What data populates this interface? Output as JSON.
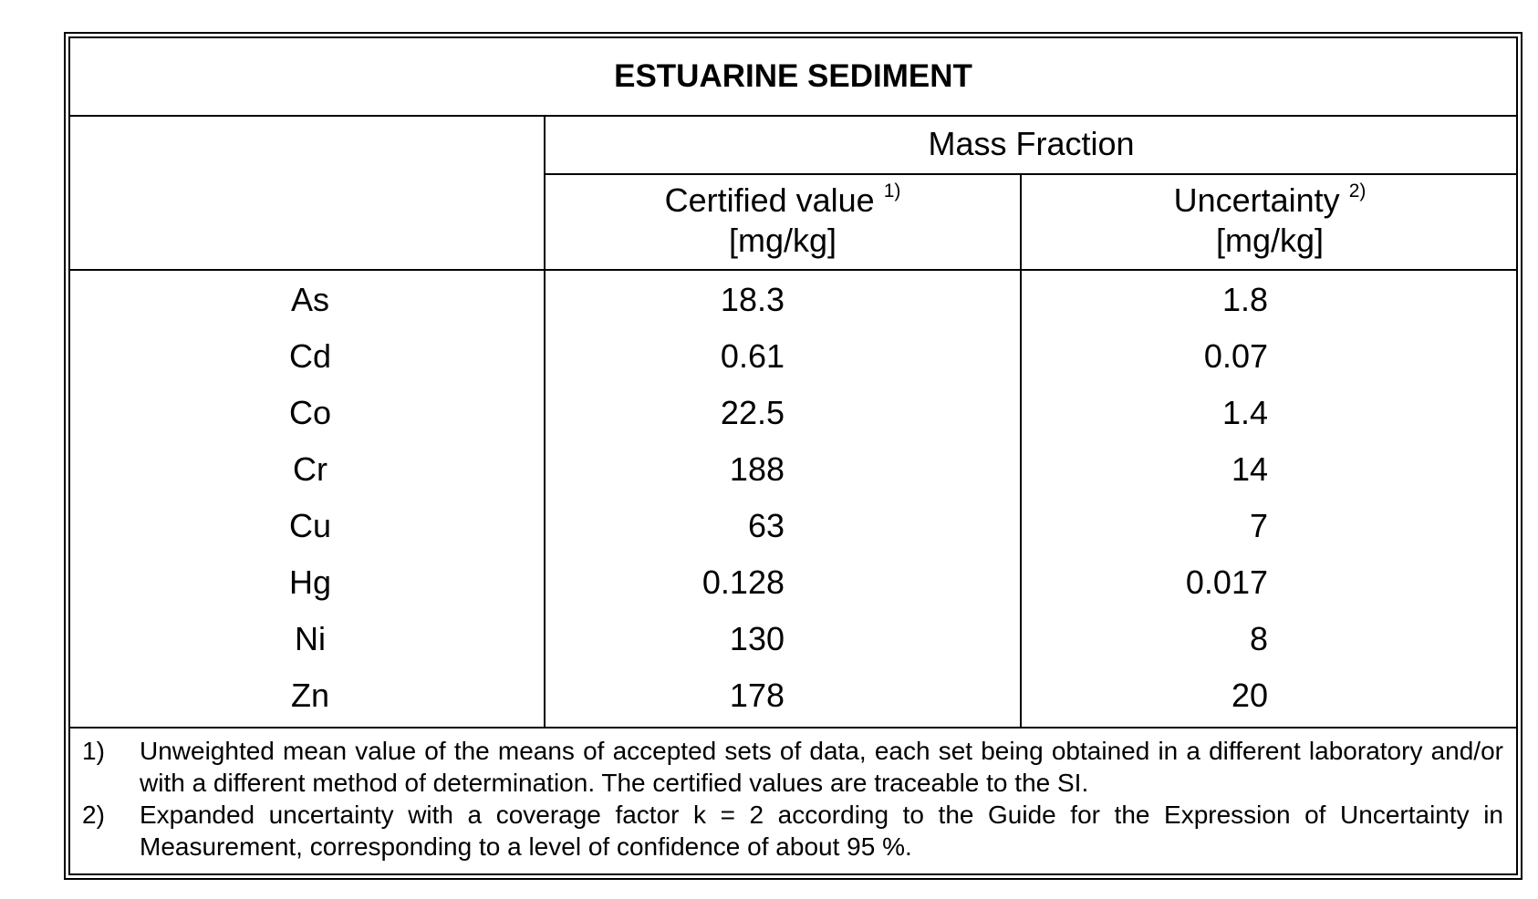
{
  "table": {
    "title": "ESTUARINE SEDIMENT",
    "group_header": "Mass Fraction",
    "columns": [
      {
        "label": "Certified value",
        "footnote_ref": "1)",
        "unit": "[mg/kg]"
      },
      {
        "label": "Uncertainty",
        "footnote_ref": "2)",
        "unit": "[mg/kg]"
      }
    ],
    "rows": [
      {
        "element": "As",
        "certified": "18.3",
        "uncertainty": "1.8"
      },
      {
        "element": "Cd",
        "certified": "0.61",
        "uncertainty": "0.07"
      },
      {
        "element": "Co",
        "certified": "22.5",
        "uncertainty": "1.4"
      },
      {
        "element": "Cr",
        "certified": "188",
        "uncertainty": "14"
      },
      {
        "element": "Cu",
        "certified": "63",
        "uncertainty": "7"
      },
      {
        "element": "Hg",
        "certified": "0.128",
        "uncertainty": "0.017"
      },
      {
        "element": "Ni",
        "certified": "130",
        "uncertainty": "8"
      },
      {
        "element": "Zn",
        "certified": "178",
        "uncertainty": "20"
      }
    ]
  },
  "footnotes": [
    {
      "num": "1)",
      "text": "Unweighted mean value of the means of accepted sets of data, each set being obtained in a different laboratory and/or with a different method of determination. The certified values are traceable to the SI."
    },
    {
      "num": "2)",
      "text": "Expanded uncertainty with a coverage factor k = 2 according to the Guide for the Expression of Uncertainty in Measurement, corresponding to a level of confidence of about 95 %."
    }
  ]
}
